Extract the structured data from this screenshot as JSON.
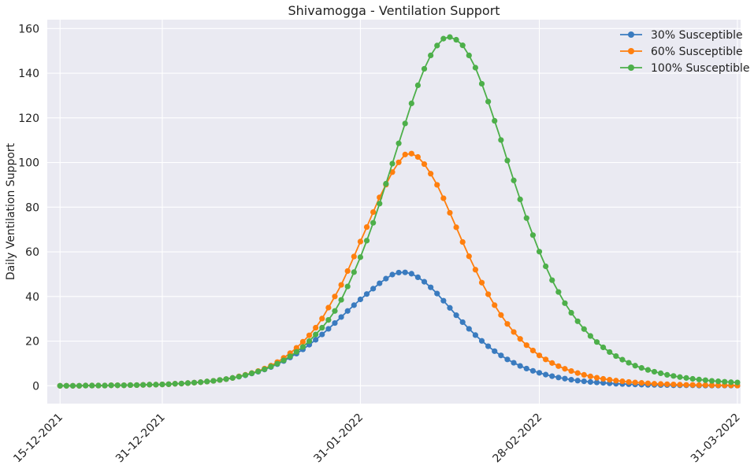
{
  "chart_data": {
    "type": "line",
    "title": "Shivamogga - Ventilation Support",
    "xlabel": "",
    "ylabel": "Daily Ventilation Support",
    "x_start": "15-12-2021",
    "x_end": "31-03-2022",
    "ylim": [
      -8,
      164
    ],
    "y_ticks": [
      0,
      20,
      40,
      60,
      80,
      100,
      120,
      140,
      160
    ],
    "x_ticks": [
      "15-12-2021",
      "31-12-2021",
      "31-01-2022",
      "28-02-2022",
      "31-03-2022"
    ],
    "grid": true,
    "legend_position": "top-right",
    "marker": "circle",
    "series": [
      {
        "name": "30% Susceptible",
        "color": "#3a7bbf",
        "values": [
          0.0,
          0.0,
          0.0,
          0.0,
          0.1,
          0.1,
          0.1,
          0.1,
          0.2,
          0.2,
          0.2,
          0.3,
          0.3,
          0.4,
          0.5,
          0.5,
          0.6,
          0.7,
          0.9,
          1.0,
          1.2,
          1.4,
          1.6,
          1.9,
          2.2,
          2.6,
          3.0,
          3.5,
          4.1,
          4.7,
          5.5,
          6.3,
          7.3,
          8.4,
          9.7,
          11.1,
          12.7,
          14.4,
          16.3,
          18.4,
          20.6,
          23.0,
          25.5,
          28.1,
          30.8,
          33.5,
          36.1,
          38.7,
          41.1,
          43.5,
          45.9,
          48.0,
          49.8,
          50.7,
          50.8,
          50.2,
          48.6,
          46.6,
          44.1,
          41.3,
          38.1,
          34.9,
          31.6,
          28.5,
          25.5,
          22.7,
          20.1,
          17.7,
          15.5,
          13.6,
          11.8,
          10.3,
          8.9,
          7.7,
          6.7,
          5.8,
          5.0,
          4.3,
          3.7,
          3.2,
          2.7,
          2.3,
          2.0,
          1.7,
          1.5,
          1.3,
          1.1,
          0.9,
          0.8,
          0.7,
          0.6,
          0.5,
          0.4,
          0.4,
          0.3,
          0.3,
          0.2,
          0.2,
          0.2,
          0.2,
          0.1,
          0.1,
          0.1,
          0.1,
          0.1,
          0.1,
          0.1
        ]
      },
      {
        "name": "60% Susceptible",
        "color": "#ff7f0e",
        "values": [
          0.0,
          0.0,
          0.0,
          0.0,
          0.1,
          0.1,
          0.1,
          0.1,
          0.2,
          0.2,
          0.2,
          0.3,
          0.3,
          0.4,
          0.5,
          0.5,
          0.6,
          0.7,
          0.9,
          1.0,
          1.2,
          1.4,
          1.6,
          1.9,
          2.2,
          2.6,
          3.0,
          3.5,
          4.2,
          4.9,
          5.7,
          6.6,
          7.7,
          9.0,
          10.6,
          12.5,
          14.6,
          17.0,
          19.7,
          22.6,
          26.0,
          30.1,
          35.0,
          40.0,
          45.2,
          51.4,
          57.9,
          64.6,
          71.1,
          77.8,
          84.4,
          90.1,
          95.7,
          100.1,
          103.6,
          104.0,
          102.5,
          99.3,
          95.0,
          90.0,
          84.0,
          77.5,
          71.0,
          64.4,
          58.0,
          52.0,
          46.2,
          41.0,
          36.1,
          31.7,
          27.7,
          24.1,
          21.0,
          18.2,
          15.8,
          13.6,
          11.8,
          10.2,
          8.8,
          7.6,
          6.6,
          5.7,
          4.9,
          4.2,
          3.6,
          3.1,
          2.7,
          2.3,
          2.0,
          1.7,
          1.5,
          1.3,
          1.1,
          0.9,
          0.8,
          0.7,
          0.6,
          0.5,
          0.4,
          0.4,
          0.3,
          0.3,
          0.2,
          0.2,
          0.2,
          0.2,
          0.1
        ]
      },
      {
        "name": "100% Susceptible",
        "color": "#4daf4a",
        "values": [
          0.0,
          0.0,
          0.0,
          0.0,
          0.1,
          0.1,
          0.1,
          0.1,
          0.2,
          0.2,
          0.2,
          0.3,
          0.3,
          0.4,
          0.5,
          0.5,
          0.6,
          0.7,
          0.9,
          1.0,
          1.2,
          1.4,
          1.6,
          1.9,
          2.2,
          2.6,
          3.0,
          3.5,
          4.1,
          4.8,
          5.6,
          6.4,
          7.4,
          8.6,
          9.9,
          11.4,
          13.2,
          15.2,
          17.4,
          20.0,
          23.0,
          26.0,
          29.5,
          33.5,
          38.5,
          44.5,
          50.9,
          57.6,
          65.0,
          73.0,
          81.6,
          90.5,
          99.5,
          108.6,
          117.5,
          126.5,
          134.6,
          142.0,
          148.0,
          152.4,
          155.5,
          156.2,
          155.0,
          152.5,
          148.0,
          142.5,
          135.3,
          127.3,
          118.7,
          110.1,
          100.9,
          92.0,
          83.5,
          75.1,
          67.5,
          60.1,
          53.5,
          47.3,
          42.0,
          37.0,
          32.7,
          28.9,
          25.4,
          22.3,
          19.6,
          17.2,
          15.1,
          13.3,
          11.7,
          10.3,
          9.0,
          8.0,
          7.1,
          6.3,
          5.6,
          4.9,
          4.4,
          3.9,
          3.5,
          3.1,
          2.8,
          2.5,
          2.2,
          2.0,
          1.8,
          1.6,
          1.5
        ]
      }
    ]
  }
}
